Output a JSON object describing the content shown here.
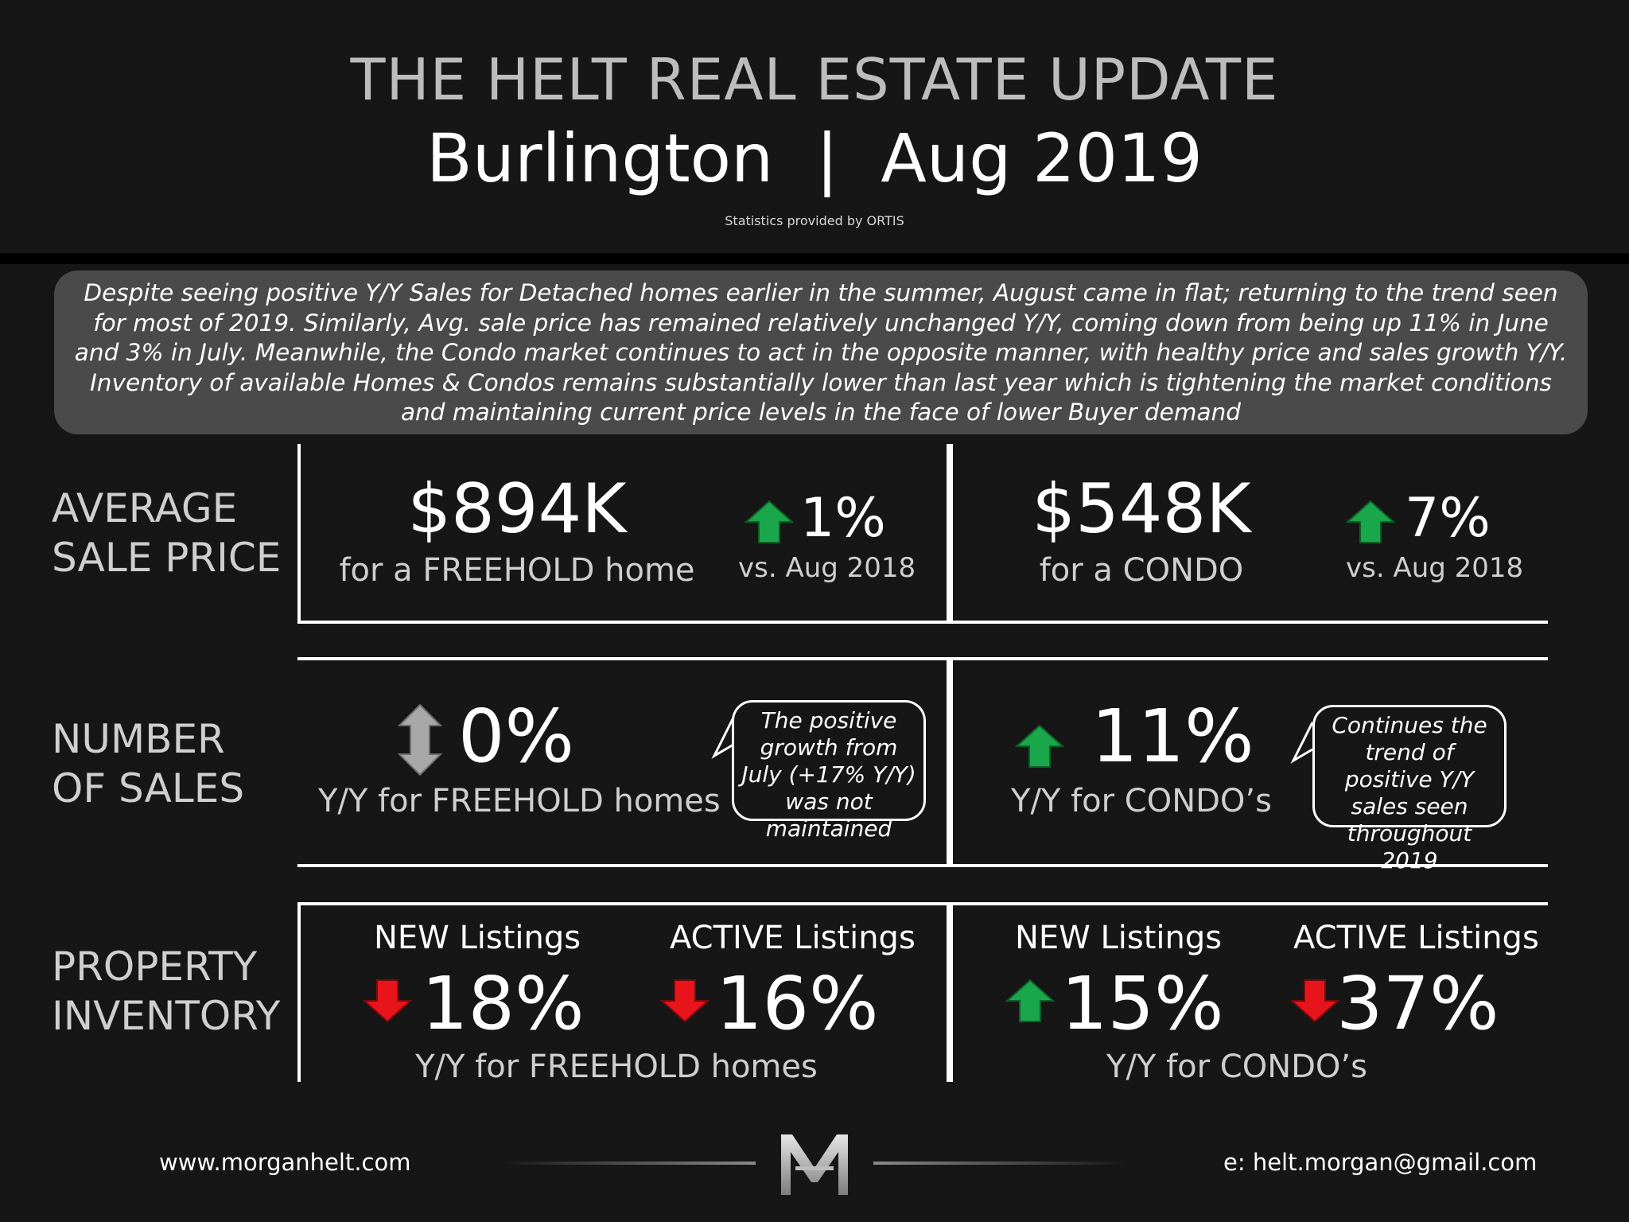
{
  "header": {
    "title": "THE HELT REAL ESTATE UPDATE",
    "subtitle": "Burlington  |  Aug 2019",
    "credit": "Statistics provided by ORTIS"
  },
  "summary": "Despite seeing positive Y/Y Sales for Detached homes earlier in the summer, August came in flat; returning to the trend seen for most of 2019. Similarly, Avg. sale price has remained relatively unchanged Y/Y, coming down from being up 11% in June and 3% in July. Meanwhile, the Condo market continues to act in the opposite manner, with healthy price and sales growth Y/Y. Inventory of available Homes & Condos remains substantially lower than last year which is tightening the market conditions and maintaining current price levels in the face of lower Buyer demand",
  "average_sale_price": {
    "label_line1": "AVERAGE",
    "label_line2": "SALE PRICE",
    "freehold": {
      "value": "$894K",
      "desc": "for a FREEHOLD home",
      "change": "1%",
      "direction": "up",
      "compare": "vs. Aug 2018"
    },
    "condo": {
      "value": "$548K",
      "desc": "for a CONDO",
      "change": "7%",
      "direction": "up",
      "compare": "vs. Aug 2018"
    }
  },
  "number_of_sales": {
    "label_line1": "NUMBER",
    "label_line2": "OF SALES",
    "freehold": {
      "change": "0%",
      "direction": "flat",
      "desc": "Y/Y for FREEHOLD homes",
      "note": "The positive growth from July (+17% Y/Y) was not maintained"
    },
    "condo": {
      "change": "11%",
      "direction": "up",
      "desc": "Y/Y for CONDO’s",
      "note": "Continues the trend of positive Y/Y sales seen throughout 2019"
    }
  },
  "property_inventory": {
    "label_line1": "PROPERTY",
    "label_line2": "INVENTORY",
    "freehold": {
      "new_label": "NEW Listings",
      "new_change": "18%",
      "new_direction": "down",
      "active_label": "ACTIVE Listings",
      "active_change": "16%",
      "active_direction": "down",
      "desc": "Y/Y for FREEHOLD homes"
    },
    "condo": {
      "new_label": "NEW Listings",
      "new_change": "15%",
      "new_direction": "up",
      "active_label": "ACTIVE Listings",
      "active_change": "37%",
      "active_direction": "down",
      "desc": "Y/Y for CONDO’s"
    }
  },
  "footer": {
    "website": "www.morganhelt.com",
    "email": "e: helt.morgan@gmail.com",
    "logo_letter": "M"
  },
  "colors": {
    "up_arrow": "#1aa64a",
    "down_arrow": "#e8141b",
    "flat_arrow": "#9a9a9a",
    "summary_bg": "#4a4a4a",
    "page_bg": "#161616"
  }
}
